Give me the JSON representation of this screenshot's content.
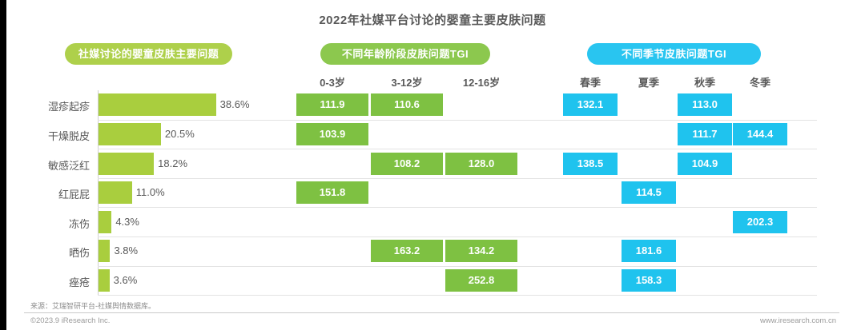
{
  "title": "2022年社媒平台讨论的婴童主要皮肤问题",
  "sections": {
    "problems": {
      "label": "社媒讨论的婴童皮肤主要问题",
      "color": "#aed04b"
    },
    "age_tgi": {
      "label": "不同年龄阶段皮肤问题TGI",
      "color": "#8cc84e"
    },
    "season_tgi": {
      "label": "不同季节皮肤问题TGI",
      "color": "#29c5f0"
    }
  },
  "chart_data": {
    "type": "bar",
    "title": "2022年社媒平台讨论的婴童主要皮肤问题",
    "categories": [
      "湿疹起疹",
      "干燥脱皮",
      "敏感泛红",
      "红屁屁",
      "冻伤",
      "晒伤",
      "痤疮"
    ],
    "share_pct": [
      38.6,
      20.5,
      18.2,
      11.0,
      4.3,
      3.8,
      3.6
    ],
    "share_unit": "%",
    "bar_color": "#a9ce3e",
    "age_columns": [
      "0-3岁",
      "3-12岁",
      "12-16岁"
    ],
    "age_cell_color": "#7ec142",
    "age_tgi": [
      [
        111.9,
        110.6,
        null
      ],
      [
        103.9,
        null,
        null
      ],
      [
        null,
        108.2,
        128.0
      ],
      [
        151.8,
        null,
        null
      ],
      [
        null,
        null,
        null
      ],
      [
        null,
        163.2,
        134.2
      ],
      [
        null,
        null,
        252.8
      ]
    ],
    "season_columns": [
      "春季",
      "夏季",
      "秋季",
      "冬季"
    ],
    "season_cell_color": "#1fc3ee",
    "season_tgi": [
      [
        132.1,
        null,
        113.0,
        null
      ],
      [
        null,
        null,
        111.7,
        144.4
      ],
      [
        138.5,
        null,
        104.9,
        null
      ],
      [
        null,
        114.5,
        null,
        null
      ],
      [
        null,
        null,
        null,
        202.3
      ],
      [
        null,
        181.6,
        null,
        null
      ],
      [
        null,
        158.3,
        null,
        null
      ]
    ],
    "legend_position": "none",
    "grid": "horizontal-row-separators"
  },
  "footer": {
    "source": "来源：艾瑞智研平台-社媒舆情数据库。",
    "copyright": "©2023.9 iResearch Inc.",
    "website": "www.iresearch.com.cn"
  }
}
